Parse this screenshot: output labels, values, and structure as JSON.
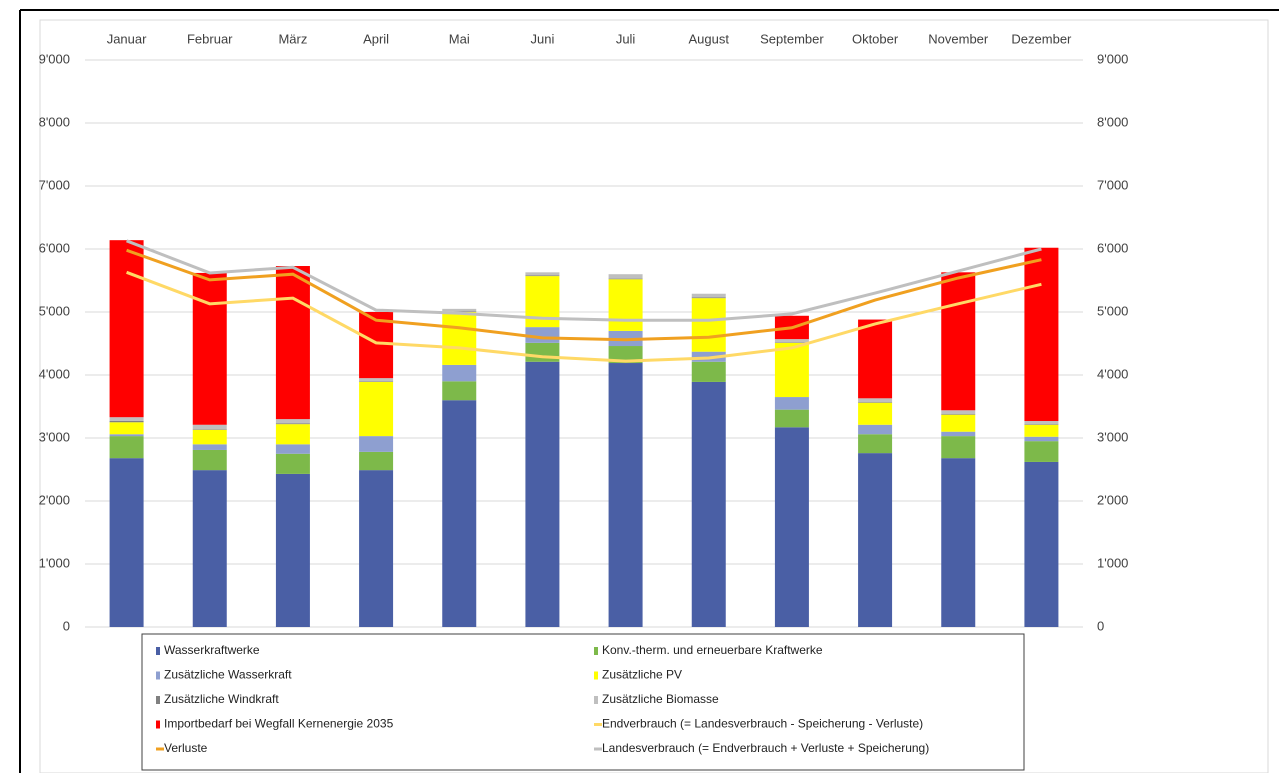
{
  "chart_data": {
    "type": "bar",
    "stacked": true,
    "categories": [
      "Januar",
      "Februar",
      "März",
      "April",
      "Mai",
      "Juni",
      "Juli",
      "August",
      "September",
      "Oktober",
      "November",
      "Dezember"
    ],
    "series": [
      {
        "name": "Wasserkraftwerke",
        "color": "#4a5fa5",
        "values": [
          2680,
          2490,
          2430,
          2490,
          3600,
          4210,
          4190,
          3890,
          3170,
          2760,
          2680,
          2620
        ]
      },
      {
        "name": "Konv.-therm. und erneuerbare Kraftwerke",
        "color": "#7db94a",
        "values": [
          350,
          320,
          320,
          290,
          300,
          300,
          270,
          320,
          280,
          300,
          350,
          330
        ]
      },
      {
        "name": "Zusätzliche Wasserkraft",
        "color": "#8e9fd0",
        "values": [
          30,
          90,
          150,
          250,
          260,
          250,
          240,
          160,
          200,
          150,
          70,
          70
        ]
      },
      {
        "name": "Zusätzliche PV",
        "color": "#ffff00",
        "values": [
          190,
          230,
          320,
          860,
          840,
          810,
          820,
          850,
          860,
          350,
          270,
          190
        ]
      },
      {
        "name": "Zusätzliche Windkraft",
        "color": "#808080",
        "values": [
          20,
          10,
          10,
          10,
          10,
          10,
          10,
          10,
          10,
          10,
          10,
          10
        ]
      },
      {
        "name": "Zusätzliche Biomasse",
        "color": "#bfbfbf",
        "values": [
          60,
          70,
          70,
          50,
          40,
          50,
          70,
          60,
          50,
          60,
          60,
          50
        ]
      },
      {
        "name": "Importbedarf bei Wegfall Kernenergie 2035",
        "color": "#ff0000",
        "values": [
          2810,
          2410,
          2430,
          1050,
          0,
          0,
          0,
          0,
          370,
          1250,
          2190,
          2750
        ]
      },
      {
        "name": "Endverbrauch (= Landesverbrauch - Speicherung - Verluste)",
        "color": "#ffd966",
        "type": "line",
        "axis": "y2",
        "values": [
          5630,
          5130,
          5220,
          4510,
          4430,
          4290,
          4220,
          4270,
          4430,
          4810,
          5130,
          5440
        ]
      },
      {
        "name": "Verluste",
        "color": "#f0a020",
        "type": "line",
        "axis": "y2",
        "values": [
          5980,
          5510,
          5600,
          4870,
          4750,
          4590,
          4560,
          4600,
          4750,
          5190,
          5540,
          5830
        ]
      },
      {
        "name": "Landesverbrauch (= Endverbrauch + Verluste + Speicherung)",
        "color": "#bfbfbf",
        "type": "line",
        "axis": "y2",
        "values": [
          6130,
          5620,
          5710,
          5030,
          4980,
          4900,
          4870,
          4870,
          4970,
          5300,
          5650,
          6000
        ]
      }
    ],
    "ylim": [
      0,
      9000
    ],
    "yticks": [
      {
        "value": 0,
        "label": "0"
      },
      {
        "value": 1000,
        "label": "1'000"
      },
      {
        "value": 2000,
        "label": "2'000"
      },
      {
        "value": 3000,
        "label": "3'000"
      },
      {
        "value": 4000,
        "label": "4'000"
      },
      {
        "value": 5000,
        "label": "5'000"
      },
      {
        "value": 6000,
        "label": "6'000"
      },
      {
        "value": 7000,
        "label": "7'000"
      },
      {
        "value": 8000,
        "label": "8'000"
      },
      {
        "value": 9000,
        "label": "9'000"
      }
    ],
    "y2lim": [
      0,
      9000
    ],
    "y2ticks": [
      {
        "value": 0,
        "label": "0"
      },
      {
        "value": 1000,
        "label": "1'000"
      },
      {
        "value": 2000,
        "label": "2'000"
      },
      {
        "value": 3000,
        "label": "3'000"
      },
      {
        "value": 4000,
        "label": "4'000"
      },
      {
        "value": 5000,
        "label": "5'000"
      },
      {
        "value": 6000,
        "label": "6'000"
      },
      {
        "value": 7000,
        "label": "7'000"
      },
      {
        "value": 8000,
        "label": "8'000"
      },
      {
        "value": 9000,
        "label": "9'000"
      }
    ],
    "grid": true,
    "legend": "bottom"
  }
}
